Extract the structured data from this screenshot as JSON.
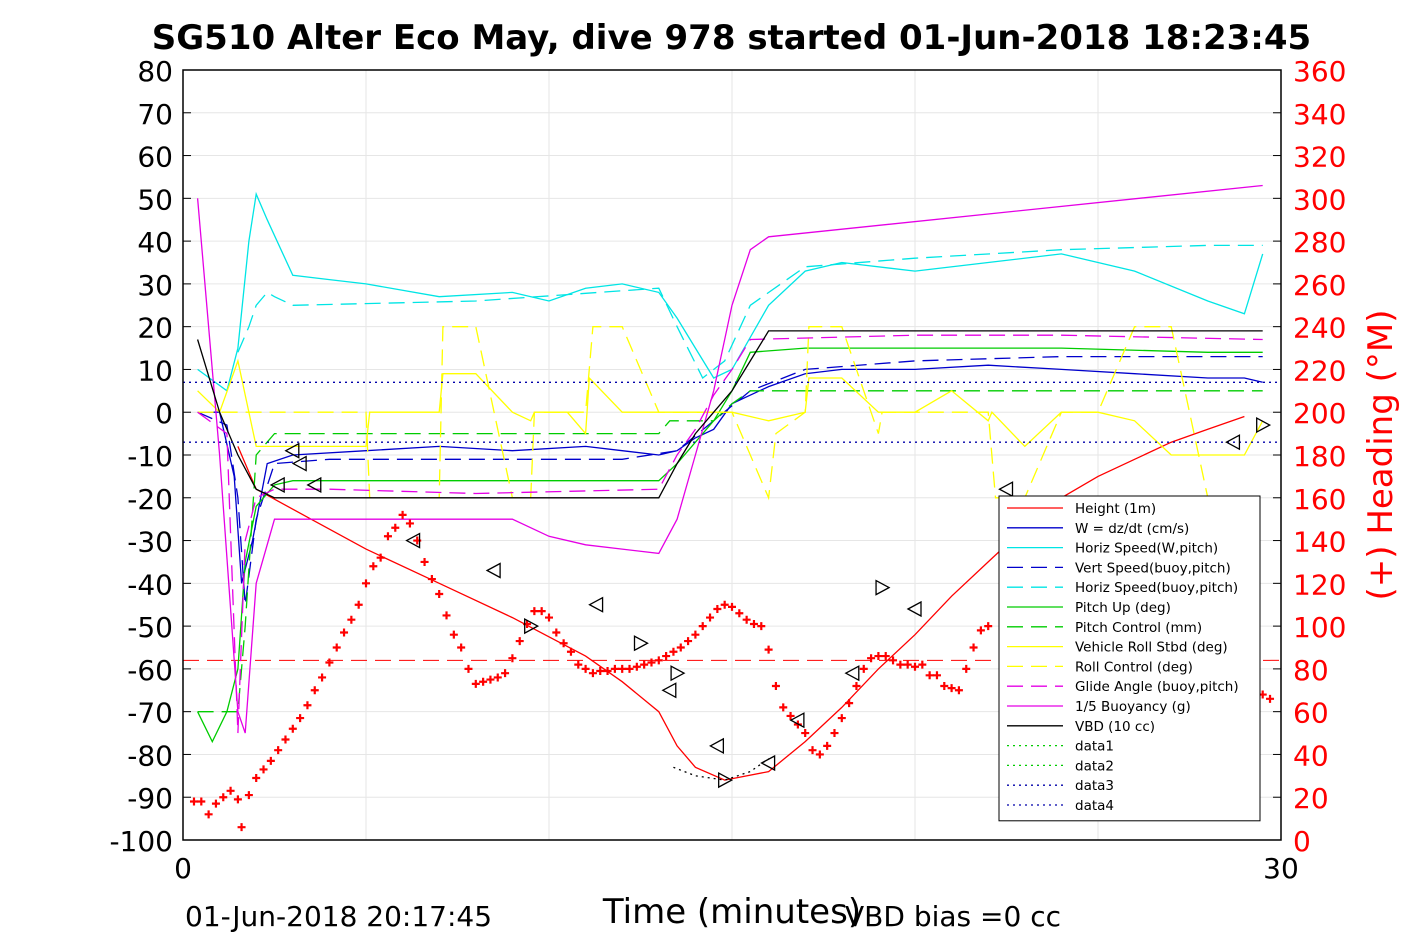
{
  "chart_data": {
    "type": "line",
    "title": "SG510 Alter Eco May, dive 978 started 01-Jun-2018 18:23:45",
    "xlabel": "Time (minutes)",
    "ylabel_left": "",
    "ylabel_right": "(+) Heading (°M)",
    "xlim": [
      0,
      30
    ],
    "ylim_left": [
      -100,
      80
    ],
    "ylim_right": [
      0,
      360
    ],
    "x_ticks": [
      "0",
      "30"
    ],
    "y_ticks_left": [
      "80",
      "70",
      "60",
      "50",
      "40",
      "30",
      "20",
      "10",
      "0",
      "-10",
      "-20",
      "-30",
      "-40",
      "-50",
      "-60",
      "-70",
      "-80",
      "-90",
      "-100"
    ],
    "y_ticks_right": [
      "360",
      "340",
      "320",
      "300",
      "280",
      "260",
      "240",
      "220",
      "200",
      "180",
      "160",
      "140",
      "120",
      "100",
      "80",
      "60",
      "40",
      "20",
      "0"
    ],
    "grid": true,
    "legend_position": "bottom-right",
    "legend": [
      {
        "label": "Height (1m)",
        "color": "#ff0000",
        "dash": "solid"
      },
      {
        "label": "W = dz/dt (cm/s)",
        "color": "#0000cc",
        "dash": "solid"
      },
      {
        "label": "Horiz Speed(W,pitch)",
        "color": "#00e5e5",
        "dash": "solid"
      },
      {
        "label": "Vert Speed(buoy,pitch)",
        "color": "#0000cc",
        "dash": "dashed"
      },
      {
        "label": "Horiz Speed(buoy,pitch)",
        "color": "#00e5e5",
        "dash": "dashed"
      },
      {
        "label": "Pitch Up (deg)",
        "color": "#00cc00",
        "dash": "solid"
      },
      {
        "label": "Pitch Control (mm)",
        "color": "#00cc00",
        "dash": "dashed"
      },
      {
        "label": "Vehicle Roll Stbd (deg)",
        "color": "#ffff00",
        "dash": "solid"
      },
      {
        "label": "Roll Control (deg)",
        "color": "#ffff00",
        "dash": "dashed"
      },
      {
        "label": "Glide Angle (buoy,pitch)",
        "color": "#e500e5",
        "dash": "dashed"
      },
      {
        "label": "1/5 Buoyancy (g)",
        "color": "#e500e5",
        "dash": "solid"
      },
      {
        "label": "VBD (10 cc)",
        "color": "#000000",
        "dash": "solid"
      },
      {
        "label": "data1",
        "color": "#00cc00",
        "dash": "dotted"
      },
      {
        "label": "data2",
        "color": "#00cc00",
        "dash": "dotted"
      },
      {
        "label": "data3",
        "color": "#0000aa",
        "dash": "dotted"
      },
      {
        "label": "data4",
        "color": "#0000aa",
        "dash": "dotted"
      }
    ],
    "series": [
      {
        "name": "Height (1m)",
        "axis": "left",
        "color": "#ff0000",
        "dash": "solid",
        "x": [
          1.5,
          2.0,
          3.5,
          5,
          7,
          9,
          11,
          12,
          13,
          13.5,
          14,
          14.8,
          16,
          17,
          18,
          19,
          20,
          21,
          22,
          23,
          24,
          25,
          26,
          27,
          28,
          29
        ],
        "y": [
          -8,
          -18,
          -25,
          -32,
          -40,
          -48,
          -57,
          -63,
          -70,
          -78,
          -83,
          -86,
          -84,
          -77,
          -69,
          -60,
          -52,
          -43,
          -35,
          -27,
          -20,
          -15,
          -11,
          -7,
          -4,
          -1
        ]
      },
      {
        "name": "W = dz/dt (cm/s)",
        "axis": "left",
        "color": "#0000cc",
        "dash": "solid",
        "x": [
          0.4,
          1.0,
          1.4,
          1.6,
          1.9,
          2.3,
          3,
          5,
          7,
          9,
          11,
          12,
          13,
          13.5,
          14,
          14.5,
          15,
          16,
          17,
          18,
          20,
          22,
          24,
          26,
          28,
          29,
          29.5
        ],
        "y": [
          0,
          0,
          -15,
          -40,
          -30,
          -12,
          -10,
          -9,
          -8,
          -9,
          -8,
          -9,
          -10,
          -9,
          -6,
          -4,
          2,
          6,
          9,
          10,
          10,
          11,
          10,
          9,
          8,
          8,
          7
        ]
      },
      {
        "name": "Horiz Speed(W,pitch)",
        "axis": "left",
        "color": "#00e5e5",
        "dash": "solid",
        "x": [
          0.4,
          1.2,
          1.5,
          1.8,
          2.0,
          2.3,
          3,
          4,
          5,
          7,
          9,
          10,
          11,
          12,
          13,
          13.5,
          14,
          14.5,
          15,
          16,
          17,
          18,
          20,
          22,
          24,
          26,
          28,
          29,
          29.5
        ],
        "y": [
          10,
          5,
          15,
          40,
          51,
          45,
          32,
          31,
          30,
          27,
          28,
          26,
          29,
          30,
          28,
          22,
          15,
          8,
          10,
          25,
          33,
          35,
          33,
          35,
          37,
          33,
          26,
          23,
          37
        ]
      },
      {
        "name": "Vert Speed(buoy,pitch)",
        "axis": "left",
        "color": "#0000cc",
        "dash": "dashed",
        "x": [
          0.4,
          1.2,
          1.5,
          1.7,
          2.0,
          2.5,
          4,
          8,
          12,
          13.5,
          14.5,
          15.5,
          17,
          20,
          24,
          28,
          29.5
        ],
        "y": [
          0,
          -3,
          -20,
          -45,
          -25,
          -12,
          -11,
          -11,
          -11,
          -9,
          -2,
          5,
          10,
          12,
          13,
          13,
          13
        ]
      },
      {
        "name": "Horiz Speed(buoy,pitch)",
        "axis": "left",
        "color": "#00e5e5",
        "dash": "dashed",
        "x": [
          1.5,
          1.8,
          2.0,
          2.3,
          2.5,
          3,
          8,
          13,
          13.5,
          14.2,
          14.8,
          15.5,
          17,
          20,
          24,
          28,
          29.5
        ],
        "y": [
          14,
          20,
          25,
          28,
          27,
          25,
          26,
          29,
          20,
          8,
          12,
          25,
          34,
          36,
          38,
          39,
          39
        ]
      },
      {
        "name": "Pitch Up (deg)",
        "axis": "left",
        "color": "#00cc00",
        "dash": "solid",
        "x": [
          0.4,
          0.8,
          1.2,
          1.5,
          1.7,
          2.0,
          2.5,
          3,
          8,
          13,
          13.5,
          14,
          14.5,
          15,
          15.5,
          17,
          20,
          24,
          28,
          29.5
        ],
        "y": [
          -70,
          -77,
          -70,
          -60,
          -35,
          -22,
          -17,
          -16,
          -16,
          -16,
          -12,
          -7,
          -2,
          5,
          14,
          15,
          15,
          15,
          14,
          14
        ]
      },
      {
        "name": "Pitch Control (mm)",
        "axis": "left",
        "color": "#00cc00",
        "dash": "dashed",
        "x": [
          0.4,
          1.2,
          1.5,
          1.7,
          2.0,
          2.5,
          8,
          13,
          13.3,
          14.5,
          15,
          15.5,
          20,
          29.5
        ],
        "y": [
          -70,
          -70,
          -70,
          -50,
          -10,
          -5,
          -5,
          -5,
          -2,
          -2,
          2,
          5,
          5,
          5
        ]
      },
      {
        "name": "Vehicle Roll Stbd (deg)",
        "axis": "left",
        "color": "#ffff00",
        "dash": "solid",
        "x": [
          0.4,
          1.0,
          1.5,
          2.0,
          3,
          4,
          5,
          5.1,
          6,
          7,
          7.1,
          8,
          9,
          9.5,
          9.6,
          10.5,
          11,
          11.1,
          12,
          13,
          14,
          15,
          16,
          17,
          17.1,
          18,
          19,
          19.1,
          20,
          21,
          22,
          22.1,
          23,
          24,
          25,
          26,
          27,
          28,
          29,
          29.5
        ],
        "y": [
          5,
          0,
          12,
          -8,
          -8,
          -8,
          -8,
          0,
          0,
          0,
          9,
          9,
          0,
          -2,
          0,
          0,
          -5,
          8,
          0,
          0,
          0,
          0,
          -2,
          0,
          8,
          8,
          0,
          0,
          0,
          5,
          -2,
          0,
          -8,
          0,
          0,
          -2,
          -10,
          -10,
          -10,
          -2
        ]
      },
      {
        "name": "Roll Control (deg)",
        "axis": "left",
        "color": "#ffff00",
        "dash": "dashed",
        "x": [
          0.4,
          2,
          5,
          5.1,
          6,
          7,
          7.1,
          8,
          9,
          9.5,
          9.6,
          10.5,
          11,
          11.2,
          12,
          13,
          14,
          15,
          16,
          16.2,
          17,
          17.1,
          18,
          19,
          19.1,
          20,
          21,
          22,
          22.2,
          23,
          24,
          25,
          26,
          27,
          28,
          29
        ],
        "y": [
          0,
          0,
          0,
          -20,
          -20,
          -20,
          20,
          20,
          -20,
          -20,
          0,
          0,
          0,
          20,
          20,
          0,
          0,
          0,
          -20,
          -5,
          0,
          20,
          20,
          -5,
          0,
          0,
          0,
          0,
          -20,
          -20,
          0,
          0,
          20,
          20,
          -20,
          -20
        ]
      },
      {
        "name": "Glide Angle (buoy,pitch)",
        "axis": "left",
        "color": "#e500e5",
        "dash": "dashed",
        "x": [
          0.4,
          1.2,
          1.5,
          1.7,
          2.0,
          2.5,
          4,
          8,
          13,
          13.5,
          14,
          14.5,
          15,
          15.5,
          20,
          24,
          29.5
        ],
        "y": [
          0,
          -5,
          -75,
          -30,
          -20,
          -18,
          -18,
          -19,
          -18,
          -10,
          -4,
          4,
          10,
          17,
          18,
          18,
          17
        ]
      },
      {
        "name": "1/5 Buoyancy (g)",
        "axis": "left",
        "color": "#e500e5",
        "dash": "solid",
        "x": [
          0.4,
          1.0,
          1.5,
          1.7,
          2.0,
          2.5,
          4,
          8,
          9,
          10,
          11,
          12,
          13,
          13.5,
          14,
          14.5,
          15,
          15.5,
          16,
          29.5
        ],
        "y": [
          50,
          -10,
          -70,
          -75,
          -40,
          -25,
          -25,
          -25,
          -25,
          -29,
          -31,
          -32,
          -33,
          -25,
          -10,
          5,
          25,
          38,
          41,
          53
        ]
      },
      {
        "name": "VBD (10 cc)",
        "axis": "left",
        "color": "#000000",
        "dash": "solid",
        "x": [
          0.4,
          1.0,
          1.5,
          2.0,
          2.5,
          3,
          8,
          13,
          13.5,
          14,
          14.5,
          15,
          15.5,
          16,
          20,
          29.5
        ],
        "y": [
          17,
          0,
          -10,
          -18,
          -20,
          -20,
          -20,
          -20,
          -12,
          -5,
          0,
          5,
          12,
          19,
          19,
          19
        ]
      },
      {
        "name": "data3",
        "axis": "left",
        "color": "#0000aa",
        "dash": "dotted",
        "x": [
          0,
          30
        ],
        "y": [
          7,
          7
        ]
      },
      {
        "name": "data4",
        "axis": "left",
        "color": "#0000aa",
        "dash": "dotted",
        "x": [
          0,
          30
        ],
        "y": [
          -7,
          -7
        ]
      },
      {
        "name": "data1",
        "axis": "left",
        "color": "#000000",
        "dash": "dotted",
        "x": [
          13.4,
          14,
          14.8,
          15.5,
          16
        ],
        "y": [
          -83,
          -85,
          -86,
          -84,
          -81
        ]
      }
    ],
    "reference_line": {
      "axis": "right",
      "y": 84,
      "color": "#ff0000",
      "dash": "dashed"
    },
    "heading": {
      "axis": "right",
      "color": "#ff0000",
      "marker": "+",
      "x": [
        0.3,
        0.5,
        0.7,
        0.9,
        1.1,
        1.3,
        1.5,
        1.6,
        1.8,
        2.0,
        2.2,
        2.4,
        2.6,
        2.8,
        3.0,
        3.2,
        3.4,
        3.6,
        3.8,
        4.0,
        4.2,
        4.4,
        4.6,
        4.8,
        5.0,
        5.2,
        5.4,
        5.6,
        5.8,
        6.0,
        6.2,
        6.4,
        6.6,
        6.8,
        7.0,
        7.2,
        7.4,
        7.6,
        7.8,
        8.0,
        8.2,
        8.4,
        8.6,
        8.8,
        9.0,
        9.2,
        9.4,
        9.6,
        9.8,
        10.0,
        10.2,
        10.4,
        10.6,
        10.8,
        11.0,
        11.2,
        11.4,
        11.6,
        11.8,
        12.0,
        12.2,
        12.4,
        12.6,
        12.8,
        13.0,
        13.2,
        13.4,
        13.6,
        13.8,
        14.0,
        14.2,
        14.4,
        14.6,
        14.8,
        15.0,
        15.2,
        15.4,
        15.6,
        15.8,
        16.0,
        16.2,
        16.4,
        16.6,
        16.8,
        17.0,
        17.2,
        17.4,
        17.6,
        17.8,
        18.0,
        18.2,
        18.4,
        18.6,
        18.8,
        19.0,
        19.2,
        19.4,
        19.6,
        19.8,
        20.0,
        20.2,
        20.4,
        20.6,
        20.8,
        21.0,
        21.2,
        21.4,
        21.6,
        21.8,
        22.0,
        29.5,
        29.7
      ],
      "y": [
        18,
        18,
        12,
        17,
        20,
        23,
        19,
        6,
        21,
        29,
        33,
        37,
        42,
        47,
        52,
        57,
        63,
        70,
        76,
        83,
        90,
        97,
        103,
        110,
        120,
        128,
        132,
        142,
        146,
        152,
        148,
        140,
        130,
        122,
        115,
        105,
        96,
        90,
        80,
        73,
        74,
        75,
        76,
        78,
        85,
        93,
        101,
        107,
        107,
        104,
        97,
        92,
        88,
        82,
        80,
        78,
        79,
        79,
        80,
        80,
        80,
        81,
        82,
        83,
        84,
        86,
        88,
        90,
        93,
        96,
        100,
        104,
        108,
        110,
        109,
        106,
        103,
        101,
        100,
        89,
        72,
        62,
        58,
        54,
        50,
        42,
        40,
        44,
        50,
        57,
        64,
        72,
        80,
        85,
        86,
        86,
        84,
        82,
        82,
        81,
        82,
        77,
        77,
        72,
        71,
        70,
        80,
        90,
        98,
        100,
        68,
        66
      ]
    },
    "triangles_left": {
      "x": [
        2.6,
        3.0,
        3.2,
        3.6,
        6.3,
        8.5,
        11.3,
        13.3,
        14.6,
        16.0,
        16.8,
        18.3,
        20.0,
        22.5,
        28.7
      ],
      "y": [
        -17,
        -9,
        -12,
        -17,
        -30,
        -37,
        -45,
        -65,
        -78,
        -82,
        -72,
        -61,
        -46,
        -18,
        -7
      ]
    },
    "triangles_right": {
      "x": [
        9.5,
        12.5,
        13.5,
        14.8,
        19.1,
        22.5,
        29.5
      ],
      "y": [
        -50,
        -54,
        -61,
        -86,
        -41,
        -61,
        -3
      ]
    }
  },
  "footer": {
    "date": "01-Jun-2018 20:17:45",
    "vbd_bias": "VBD bias =0 cc"
  }
}
